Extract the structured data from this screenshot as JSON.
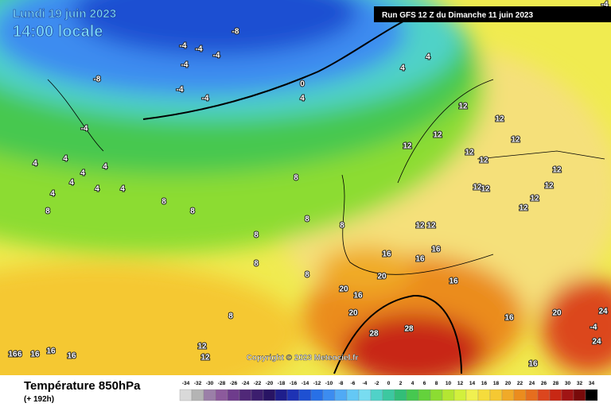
{
  "header": {
    "date": "Lundi 19 juin 2023",
    "time": "14:00 locale",
    "run": "Run GFS 12 Z du Dimanche 11 juin 2023"
  },
  "footer": {
    "title": "Température 850hPa",
    "subtitle": "(+ 192h)",
    "copyright": "Copyright © 2023 Meteociel.fr"
  },
  "legend": {
    "ticks": [
      -34,
      -32,
      -30,
      -28,
      -26,
      -24,
      -22,
      -20,
      -18,
      -16,
      -14,
      -12,
      -10,
      -8,
      -6,
      -4,
      -2,
      0,
      2,
      4,
      6,
      8,
      10,
      12,
      14,
      16,
      18,
      20,
      22,
      24,
      26,
      28,
      30,
      32,
      34
    ],
    "colors": [
      "#d9d9d9",
      "#b4b4b4",
      "#9b7fa8",
      "#8c5a9c",
      "#6e3c8c",
      "#502878",
      "#3c1e6e",
      "#281464",
      "#1e1e8c",
      "#1e32b4",
      "#1e50d2",
      "#2870e6",
      "#3c8cf0",
      "#50aaf5",
      "#64c8f5",
      "#78dcf0",
      "#50d2c8",
      "#3cc8a0",
      "#32be78",
      "#46c850",
      "#64d23c",
      "#8cdc32",
      "#b4e632",
      "#d2f03c",
      "#f0f050",
      "#f5dc3c",
      "#f5c832",
      "#f0aa28",
      "#eb8c1e",
      "#e66e1e",
      "#dc461e",
      "#c82814",
      "#a01414",
      "#780a0a",
      "#000000"
    ]
  },
  "map_labels": [
    "-8",
    "-4",
    "-4",
    "-4",
    "-4",
    "-8",
    "-4",
    "-4",
    "0",
    "4",
    "4",
    "4",
    "-4",
    "-4",
    "4",
    "4",
    "4",
    "4",
    "4",
    "4",
    "4",
    "4",
    "8",
    "8",
    "8",
    "8",
    "8",
    "8",
    "8",
    "8",
    "8",
    "8",
    "12",
    "12",
    "12",
    "12",
    "12",
    "12",
    "12",
    "12",
    "12",
    "12",
    "12",
    "12",
    "12",
    "12",
    "12",
    "16",
    "16",
    "16",
    "16",
    "16",
    "16",
    "16",
    "16",
    "20",
    "20",
    "20",
    "20",
    "24",
    "24",
    "28",
    "28",
    "12",
    "12",
    "16",
    "16",
    "16",
    "16",
    "-4"
  ]
}
